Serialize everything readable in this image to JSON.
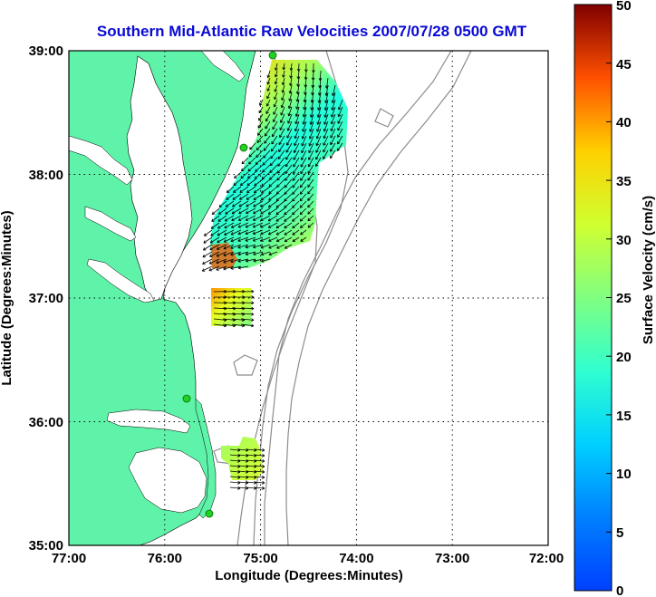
{
  "title": "Southern Mid-Atlantic Raw Velocities 2007/07/28 0500 GMT",
  "x_axis": {
    "label": "Longitude (Degrees:Minutes)",
    "ticks": [
      "77:00",
      "76:00",
      "75:00",
      "74:00",
      "73:00",
      "72:00"
    ]
  },
  "y_axis": {
    "label": "Latitude (Degrees:Minutes)",
    "ticks": [
      "39:00",
      "38:00",
      "37:00",
      "36:00",
      "35:00"
    ]
  },
  "colorbar": {
    "label": "Surface Velocity (cm/s)",
    "ticks": [
      "50",
      "45",
      "40",
      "35",
      "30",
      "25",
      "20",
      "15",
      "10",
      "5",
      "0"
    ],
    "colormap": "jet",
    "range": [
      0,
      50
    ]
  },
  "colors": {
    "land": "#5ff3a9",
    "water": "#ffffff",
    "bathymetry": "#8c8c8c",
    "station": "#1fd21f",
    "title": "#0a0ad6",
    "grid": "#000000"
  },
  "chart_data": {
    "type": "heatmap",
    "projection": "lon/lat",
    "xlim": [
      -77,
      -72
    ],
    "ylim": [
      35,
      39
    ],
    "grid": true,
    "stations": [
      {
        "lon": -75.08,
        "lat": 38.98
      },
      {
        "lon": -75.17,
        "lat": 38.22
      },
      {
        "lon": -75.73,
        "lat": 36.18
      },
      {
        "lon": -75.53,
        "lat": 35.26
      }
    ],
    "velocity_regions": [
      {
        "name": "north",
        "lon_range": [
          -75.55,
          -74.15
        ],
        "lat_range": [
          37.25,
          38.9
        ],
        "speed_range_cms": [
          5,
          45
        ]
      },
      {
        "name": "middle",
        "lon_range": [
          -75.55,
          -75.1
        ],
        "lat_range": [
          36.72,
          37.07
        ],
        "speed_range_cms": [
          15,
          35
        ]
      },
      {
        "name": "south",
        "lon_range": [
          -75.42,
          -75.05
        ],
        "lat_range": [
          35.5,
          35.88
        ],
        "speed_range_cms": [
          18,
          28
        ]
      }
    ]
  }
}
